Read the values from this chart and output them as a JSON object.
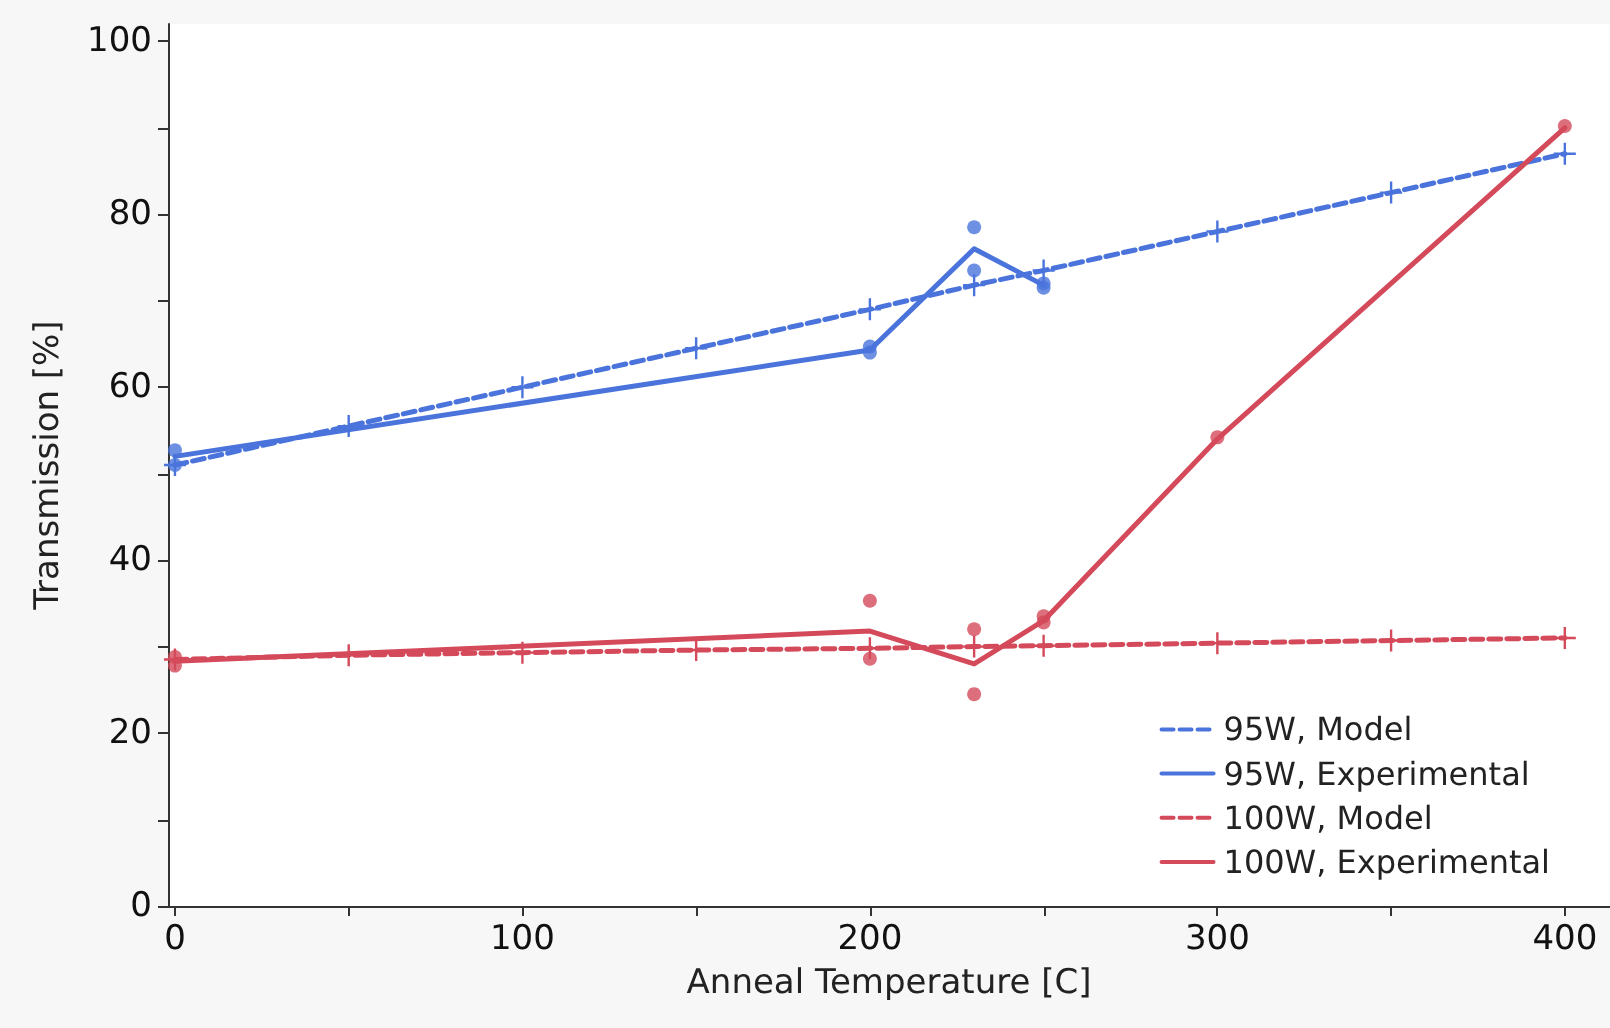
{
  "chart_data": {
    "type": "line",
    "xlabel": "Anneal Temperature [C]",
    "ylabel": "Transmission [%]",
    "xlim": [
      -2,
      413
    ],
    "xticks": [
      0,
      {
        "value": 50,
        "label": null
      },
      100,
      {
        "value": 150,
        "label": null
      },
      200,
      {
        "value": 250,
        "label": null
      },
      300,
      {
        "value": 350,
        "label": null
      },
      400
    ],
    "ylim": [
      0,
      102
    ],
    "yticks": [
      0,
      {
        "value": 10,
        "label": null
      },
      20,
      {
        "value": 30,
        "label": null
      },
      40,
      {
        "value": 50,
        "label": null
      },
      60,
      {
        "value": 70,
        "label": null
      },
      80,
      {
        "value": 90,
        "label": null
      },
      100
    ],
    "grid": false,
    "legend": "bottom right",
    "series": [
      {
        "name": "95W, Model",
        "color": "#4a74dc",
        "line_style": "dashed",
        "marker": "cross",
        "x": [
          0,
          50,
          100,
          150,
          200,
          230,
          250,
          300,
          350,
          400
        ],
        "values": [
          51,
          55.5,
          60,
          64.5,
          69,
          71.8,
          73.5,
          78,
          82.5,
          87
        ]
      },
      {
        "name": "95W, Experimental",
        "color": "#4a74dc",
        "line_style": "solid",
        "marker": "none",
        "x": [
          0,
          200,
          230,
          250
        ],
        "values": [
          52,
          64.3,
          76,
          71.8
        ]
      },
      {
        "type": "scatter",
        "color": "#4a74dc",
        "marker": "circle",
        "x": [
          0,
          0,
          200,
          200,
          230,
          230,
          250,
          250
        ],
        "values": [
          52.7,
          51,
          64.7,
          64,
          78.5,
          73.5,
          72,
          71.5
        ]
      },
      {
        "name": "100W, Model",
        "color": "#d44a5a",
        "line_style": "dashed",
        "marker": "cross",
        "x": [
          0,
          50,
          100,
          150,
          200,
          230,
          250,
          300,
          350,
          400
        ],
        "values": [
          28.5,
          29,
          29.3,
          29.6,
          29.8,
          30,
          30.1,
          30.4,
          30.7,
          31
        ]
      },
      {
        "name": "100W, Experimental",
        "color": "#d44a5a",
        "line_style": "solid",
        "marker": "none",
        "x": [
          0,
          200,
          230,
          250,
          300,
          400
        ],
        "values": [
          28.3,
          31.8,
          28,
          33,
          54,
          90
        ]
      },
      {
        "type": "scatter",
        "color": "#d44a5a",
        "marker": "circle",
        "x": [
          0,
          0,
          200,
          200,
          230,
          230,
          250,
          250,
          300,
          400
        ],
        "values": [
          28.8,
          27.8,
          35.3,
          28.6,
          32,
          24.5,
          33.5,
          32.8,
          54.2,
          90.2
        ]
      }
    ]
  }
}
